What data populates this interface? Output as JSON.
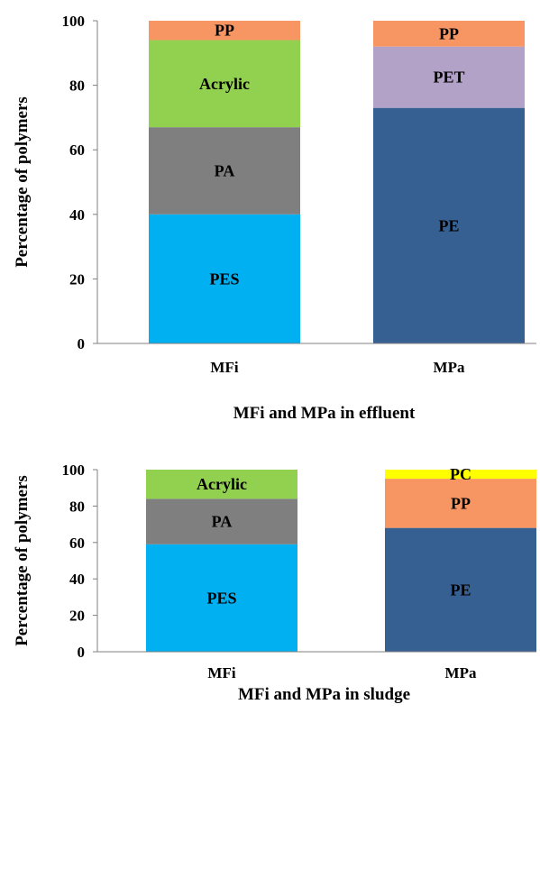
{
  "chart_data": [
    {
      "type": "bar",
      "stacked": true,
      "xlabel": "MFi and MPa in effluent",
      "ylabel": "Percentage of polymers",
      "ylim": [
        0,
        100
      ],
      "yticks": [
        "0",
        "20",
        "40",
        "60",
        "80",
        "100"
      ],
      "grid": false,
      "categories": [
        "MFi",
        "MPa"
      ],
      "bars": [
        {
          "category": "MFi",
          "segments": [
            {
              "label": "PES",
              "value": 40,
              "color": "#00b0f0"
            },
            {
              "label": "PA",
              "value": 27,
              "color": "#7f7f7f"
            },
            {
              "label": "Acrylic",
              "value": 27,
              "color": "#92d050"
            },
            {
              "label": "PP",
              "value": 6,
              "color": "#f79663"
            }
          ]
        },
        {
          "category": "MPa",
          "segments": [
            {
              "label": "PE",
              "value": 73,
              "color": "#376092"
            },
            {
              "label": "PET",
              "value": 19,
              "color": "#b2a2c7"
            },
            {
              "label": "PP",
              "value": 8,
              "color": "#f79663"
            }
          ]
        }
      ]
    },
    {
      "type": "bar",
      "stacked": true,
      "xlabel": "MFi and MPa in sludge",
      "ylabel": "Percentage of polymers",
      "ylim": [
        0,
        100
      ],
      "yticks": [
        "0",
        "20",
        "40",
        "60",
        "80",
        "100"
      ],
      "grid": false,
      "categories": [
        "MFi",
        "MPa"
      ],
      "bars": [
        {
          "category": "MFi",
          "segments": [
            {
              "label": "PES",
              "value": 59,
              "color": "#00b0f0"
            },
            {
              "label": "PA",
              "value": 25,
              "color": "#7f7f7f"
            },
            {
              "label": "Acrylic",
              "value": 16,
              "color": "#92d050"
            }
          ]
        },
        {
          "category": "MPa",
          "segments": [
            {
              "label": "PE",
              "value": 68,
              "color": "#376092"
            },
            {
              "label": "PP",
              "value": 27,
              "color": "#f79663"
            },
            {
              "label": "PC",
              "value": 5,
              "color": "#ffff00"
            }
          ]
        }
      ]
    }
  ]
}
